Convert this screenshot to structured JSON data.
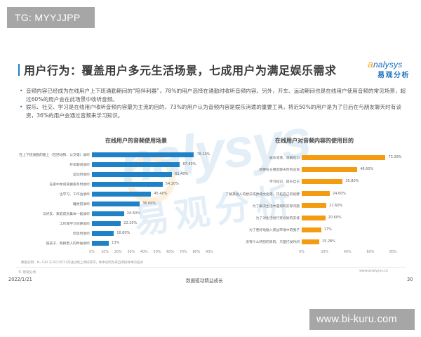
{
  "overlay": {
    "tg_badge": "TG: MYYJJPP",
    "site_badge": "www.bi-kuru.com"
  },
  "header": {
    "title": "用户行为：覆盖用户多元生活场景，七成用户为满足娱乐需求",
    "logo_en": "nalysys",
    "logo_a": "a",
    "logo_cn": "易观分析"
  },
  "bullets": [
    "音频内容已经成为在线用户上下班通勤期间的“陪伴利器”，78%的用户选择在通勤时收听音频内容。另外，开车、运动期间也是在线用户使用音频的常见场景，超过60%的用户会在此场景中收听音频。",
    "娱乐、社交、学习是在线用户收听音频内容最为主流的目的，73%的用户认为音频内容是娱乐消遣的重要工具，将近50%的用户是为了日后在与朋友聊天时有谈资，36%的用户会通过音频来学习知识。"
  ],
  "watermark": {
    "text": "nalysys",
    "cn": "易观分析"
  },
  "chart_data": [
    {
      "type": "bar",
      "orientation": "horizontal",
      "title": "在线用户的音频使用场景",
      "categories": [
        "在上下班通勤的路上（包括地铁、公交等）收听",
        "开车期间收听",
        "运动时收听",
        "在家中休闲或做家务时收听",
        "边学习、工作边收听",
        "睡觉前收听",
        "与好友、家庭成员集体一起收听",
        "工作或学习间隙收听",
        "吃饭时收听",
        "陪孩子、照顾老人的时候收听"
      ],
      "values": [
        78.2,
        67.4,
        61.4,
        54.2,
        45.4,
        36.6,
        24.6,
        22.2,
        16.8,
        13
      ],
      "value_labels": [
        "78.20%",
        "67.40%",
        "61.40%",
        "54.20%",
        "45.40%",
        "36.60%",
        "24.60%",
        "22.20%",
        "16.80%",
        "13%"
      ],
      "xticks": [
        "0%",
        "10%",
        "20%",
        "30%",
        "40%",
        "50%",
        "60%",
        "70%",
        "80%",
        "90%"
      ],
      "xlim": [
        0,
        90
      ],
      "color": "#1f82c7",
      "grid": false,
      "legend": null
    },
    {
      "type": "bar",
      "orientation": "horizontal",
      "title": "在线用户对音频内容的使用目的",
      "categories": [
        "娱乐消遣、消解压力",
        "想要在与朋友聊天时有谈资",
        "学习知识、提升自己",
        "了解其他人的想法或异域文化等，开拓自己的视野",
        "为了解决生活中遇到的实际问题",
        "为了对生活进行有规划的安排",
        "为了更好地融入周边环境中的圈子",
        "没有什么特别的目的，只是打发时间"
      ],
      "values": [
        73.28,
        48.6,
        35.8,
        24.6,
        21.6,
        20.6,
        17,
        15.28
      ],
      "value_labels": [
        "73.28%",
        "48.60%",
        "35.80%",
        "24.60%",
        "21.60%",
        "20.60%",
        "17%",
        "15.28%"
      ],
      "xticks": [
        "0%",
        "20%",
        "40%",
        "60%",
        "80%"
      ],
      "xlim": [
        0,
        80
      ],
      "color": "#f39c12",
      "grid": false,
      "legend": null
    }
  ],
  "footer": {
    "source_note": "数据说明：N=530 于2021年11月通过线上调研获得，样本说明为来自调研样本的描述",
    "copyright": "© 易观分析",
    "site_url": "www.analysys.cn",
    "date": "2022/1/21",
    "center": "数据驱动精益成长",
    "page": "30"
  }
}
